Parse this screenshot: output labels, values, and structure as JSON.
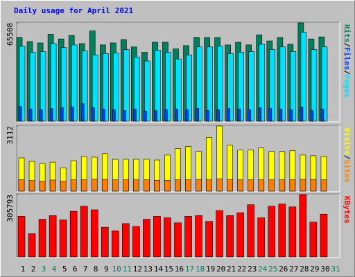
{
  "chart_data": {
    "type": "bar",
    "title": "Daily usage for April 2021",
    "categories": [
      "1",
      "2",
      "3",
      "4",
      "5",
      "6",
      "7",
      "8",
      "9",
      "10",
      "11",
      "12",
      "13",
      "14",
      "15",
      "16",
      "17",
      "18",
      "19",
      "20",
      "21",
      "22",
      "23",
      "24",
      "25",
      "26",
      "27",
      "28",
      "29",
      "30",
      "31"
    ],
    "category_colors": [
      "#000000",
      "#000000",
      "#00805c",
      "#00805c",
      "#000000",
      "#000000",
      "#000000",
      "#000000",
      "#000000",
      "#00805c",
      "#00805c",
      "#000000",
      "#000000",
      "#000000",
      "#000000",
      "#000000",
      "#00805c",
      "#00805c",
      "#000000",
      "#000000",
      "#000000",
      "#000000",
      "#000000",
      "#00805c",
      "#00805c",
      "#000000",
      "#000000",
      "#000000",
      "#000000",
      "#000000",
      "#00805c"
    ],
    "panels": [
      {
        "ylim": [
          0,
          65508
        ],
        "yticks": [
          65508
        ],
        "series": [
          {
            "name": "Hits",
            "color": "#00805c",
            "values": [
              55704,
              53030,
              52139,
              57932,
              54813,
              57041,
              51694,
              60160,
              50802,
              52139,
              54367,
              49465,
              45900,
              52585,
              52585,
              48128,
              50356,
              55704,
              55704,
              55704,
              50802,
              52585,
              50802,
              57487,
              53476,
              55704,
              51248,
              65508,
              54813,
              56150,
              null
            ]
          },
          {
            "name": "Files",
            "color": "#0040ff",
            "values": [
              9800,
              8000,
              7600,
              8500,
              9100,
              9400,
              11600,
              8900,
              8000,
              7600,
              7100,
              8000,
              6700,
              7100,
              7600,
              8000,
              7600,
              8500,
              7100,
              7600,
              8500,
              8000,
              7600,
              8900,
              8500,
              8000,
              7600,
              9400,
              7100,
              8000,
              null
            ]
          },
          {
            "name": "Pages",
            "color": "#00e0ff",
            "values": [
              49911,
              45900,
              46346,
              51694,
              49019,
              50802,
              46791,
              44118,
              45009,
              45455,
              47683,
              42781,
              40107,
              47237,
              45900,
              41444,
              44118,
              49465,
              49465,
              49911,
              45009,
              45900,
              46346,
              51248,
              47683,
              49465,
              46346,
              59270,
              47683,
              49465,
              null
            ]
          }
        ]
      },
      {
        "ylim": [
          0,
          3112
        ],
        "yticks": [
          3112
        ],
        "series": [
          {
            "name": "Visits",
            "color": "#ffff00",
            "values": [
              1590,
              1421,
              1319,
              1387,
              1116,
              1455,
              1657,
              1624,
              1793,
              1522,
              1522,
              1522,
              1522,
              1488,
              1725,
              2030,
              2131,
              1894,
              2571,
              3112,
              2199,
              1962,
              1962,
              2063,
              1894,
              1894,
              1928,
              1725,
              1691,
              1657,
              null
            ]
          },
          {
            "name": "Sites",
            "color": "#ff8000",
            "values": [
              540,
              510,
              470,
              530,
              470,
              540,
              540,
              570,
              560,
              540,
              540,
              540,
              540,
              520,
              520,
              540,
              540,
              560,
              540,
              590,
              560,
              540,
              540,
              540,
              540,
              540,
              540,
              560,
              560,
              540,
              null
            ]
          }
        ]
      },
      {
        "ylim": [
          0,
          305793
        ],
        "yticks": [
          305793
        ],
        "series": [
          {
            "name": "KBytes",
            "color": "#ff0000",
            "values": [
              199120,
              113784,
              184898,
              202675,
              181341,
              224010,
              248900,
              231121,
              145784,
              128005,
              163562,
              149339,
              184898,
              199120,
              192008,
              167118,
              199120,
              202675,
              174229,
              227565,
              202675,
              216899,
              256011,
              192008,
              248900,
              259570,
              245344,
              305793,
              170675,
              209786,
              null
            ]
          }
        ]
      }
    ]
  }
}
